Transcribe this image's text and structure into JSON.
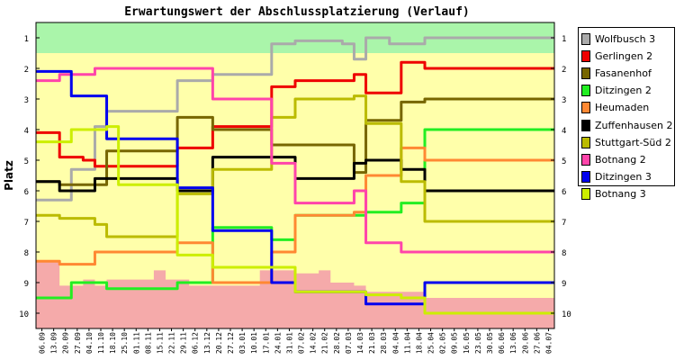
{
  "chart_data": {
    "type": "line",
    "title": "Erwartungswert der Abschlussplatzierung (Verlauf)",
    "ylabel": "Platz",
    "xlabel": "",
    "ylim": [
      1,
      10
    ],
    "y_inverted": true,
    "y_ticks": [
      "1",
      "2",
      "3",
      "4",
      "5",
      "6",
      "7",
      "8",
      "9",
      "10"
    ],
    "grid": false,
    "legend": "right",
    "x": [
      "06.09",
      "13.09",
      "20.09",
      "27.09",
      "04.10",
      "11.10",
      "18.10",
      "25.10",
      "01.11",
      "08.11",
      "15.11",
      "22.11",
      "29.11",
      "06.12",
      "13.12",
      "20.12",
      "27.12",
      "03.01",
      "10.01",
      "17.01",
      "24.01",
      "31.01",
      "07.02",
      "14.02",
      "21.02",
      "28.02",
      "07.03",
      "14.03",
      "21.03",
      "28.03",
      "04.04",
      "11.04",
      "18.04",
      "25.04",
      "02.05",
      "09.05",
      "16.05",
      "23.05",
      "30.05",
      "06.06",
      "13.06",
      "20.06",
      "27.06",
      "04.07"
    ],
    "x_tick_labels": [
      "06.09",
      "13.09",
      "20.09",
      "27.09",
      "04.10",
      "11.10",
      "18.10",
      "25.10",
      "01.11",
      "08.11",
      "15.11",
      "22.11",
      "29.11",
      "06.12",
      "13.12",
      "20.12",
      "27.12",
      "03.01",
      "10.01",
      "17.01",
      "24.01",
      "31.01",
      "07.02",
      "14.02",
      "21.02",
      "28.02",
      "07.03",
      "14.03",
      "21.03",
      "28.03",
      "04.04",
      "11.04",
      "18.04",
      "25.04",
      "02.05",
      "09.05",
      "16.05",
      "23.05",
      "30.05",
      "06.06",
      "13.06",
      "20.06",
      "27.06",
      "04.07"
    ],
    "bands": [
      {
        "from": 0.5,
        "to": 1.5,
        "color": "#aaf5aa"
      },
      {
        "from": 1.5,
        "to": 9.5,
        "color": "#ffffaa"
      },
      {
        "from": 9.5,
        "to": 10.5,
        "color": "#f5aaaa"
      }
    ],
    "relegation_area_color": "#f5aaaa",
    "relegation_area": [
      8.3,
      8.3,
      9.1,
      9.1,
      8.9,
      9.1,
      8.9,
      8.9,
      8.9,
      8.9,
      8.6,
      8.9,
      8.9,
      9.1,
      9.1,
      9.1,
      9.1,
      9.1,
      9.1,
      8.6,
      8.6,
      8.6,
      8.7,
      8.7,
      8.6,
      9.0,
      9.0,
      9.1,
      9.3,
      9.3,
      9.3,
      9.3,
      9.3,
      9.5,
      9.5,
      9.5,
      9.5,
      9.5,
      9.5,
      9.5,
      9.5,
      9.5,
      9.5,
      9.5
    ],
    "series": [
      {
        "name": "Wolfbusch 3",
        "color": "#aaaaaa",
        "values": [
          6.3,
          6.3,
          6.3,
          5.3,
          5.3,
          3.9,
          3.4,
          3.4,
          3.4,
          3.4,
          3.4,
          3.4,
          2.4,
          2.4,
          2.4,
          2.2,
          2.2,
          2.2,
          2.2,
          2.2,
          1.2,
          1.2,
          1.1,
          1.1,
          1.1,
          1.1,
          1.2,
          1.7,
          1.0,
          1.0,
          1.2,
          1.2,
          1.2,
          1.0,
          1.0,
          1.0,
          1.0,
          1.0,
          1.0,
          1.0,
          1.0,
          1.0,
          1.0,
          1.0
        ]
      },
      {
        "name": "Gerlingen 2",
        "color": "#ee0000",
        "values": [
          4.1,
          4.1,
          4.9,
          4.9,
          5.0,
          5.2,
          5.2,
          5.2,
          5.2,
          5.2,
          5.2,
          5.2,
          4.6,
          4.6,
          4.6,
          3.9,
          3.9,
          3.9,
          3.9,
          3.9,
          2.6,
          2.6,
          2.4,
          2.4,
          2.4,
          2.4,
          2.4,
          2.2,
          2.8,
          2.8,
          2.8,
          1.8,
          1.8,
          2.0,
          2.0,
          2.0,
          2.0,
          2.0,
          2.0,
          2.0,
          2.0,
          2.0,
          2.0,
          2.0
        ]
      },
      {
        "name": "Fasanenhof",
        "color": "#776600",
        "values": [
          5.7,
          5.7,
          5.8,
          5.8,
          5.8,
          5.8,
          4.7,
          4.7,
          4.7,
          4.7,
          4.7,
          4.7,
          3.6,
          3.6,
          3.6,
          4.0,
          4.0,
          4.0,
          4.0,
          4.0,
          4.5,
          4.5,
          4.5,
          4.5,
          4.5,
          4.5,
          4.5,
          5.4,
          3.7,
          3.7,
          3.7,
          3.1,
          3.1,
          3.0,
          3.0,
          3.0,
          3.0,
          3.0,
          3.0,
          3.0,
          3.0,
          3.0,
          3.0,
          3.0
        ]
      },
      {
        "name": "Ditzingen 2",
        "color": "#22ee22",
        "values": [
          9.5,
          9.5,
          9.5,
          9.0,
          9.0,
          9.0,
          9.2,
          9.2,
          9.2,
          9.2,
          9.2,
          9.2,
          9.0,
          9.0,
          9.0,
          7.2,
          7.2,
          7.2,
          7.2,
          7.2,
          7.6,
          7.6,
          6.8,
          6.8,
          6.8,
          6.8,
          6.8,
          6.8,
          6.7,
          6.7,
          6.7,
          6.4,
          6.4,
          4.0,
          4.0,
          4.0,
          4.0,
          4.0,
          4.0,
          4.0,
          4.0,
          4.0,
          4.0,
          4.0
        ]
      },
      {
        "name": "Heumaden",
        "color": "#ff8833",
        "values": [
          8.3,
          8.3,
          8.4,
          8.4,
          8.4,
          8.0,
          8.0,
          8.0,
          8.0,
          8.0,
          8.0,
          8.0,
          7.7,
          7.7,
          7.7,
          9.0,
          9.0,
          9.0,
          9.0,
          9.0,
          8.0,
          8.0,
          6.8,
          6.8,
          6.8,
          6.8,
          6.8,
          6.7,
          5.5,
          5.5,
          5.5,
          4.6,
          4.6,
          5.0,
          5.0,
          5.0,
          5.0,
          5.0,
          5.0,
          5.0,
          5.0,
          5.0,
          5.0,
          5.0
        ]
      },
      {
        "name": "Zuffenhausen 2",
        "color": "#000000",
        "values": [
          5.7,
          5.7,
          6.0,
          6.0,
          6.0,
          5.6,
          5.6,
          5.6,
          5.6,
          5.6,
          5.6,
          5.6,
          6.0,
          6.0,
          6.0,
          4.9,
          4.9,
          4.9,
          4.9,
          4.9,
          4.9,
          4.9,
          5.6,
          5.6,
          5.6,
          5.6,
          5.6,
          5.1,
          5.0,
          5.0,
          5.0,
          5.3,
          5.3,
          6.0,
          6.0,
          6.0,
          6.0,
          6.0,
          6.0,
          6.0,
          6.0,
          6.0,
          6.0,
          6.0
        ]
      },
      {
        "name": "Stuttgart-Süd 2",
        "color": "#bbbb00",
        "values": [
          6.8,
          6.8,
          6.9,
          6.9,
          6.9,
          7.1,
          7.5,
          7.5,
          7.5,
          7.5,
          7.5,
          7.5,
          6.1,
          6.1,
          6.1,
          5.3,
          5.3,
          5.3,
          5.3,
          5.3,
          3.6,
          3.6,
          3.0,
          3.0,
          3.0,
          3.0,
          3.0,
          2.9,
          3.8,
          3.8,
          3.8,
          5.7,
          5.7,
          7.0,
          7.0,
          7.0,
          7.0,
          7.0,
          7.0,
          7.0,
          7.0,
          7.0,
          7.0,
          7.0
        ]
      },
      {
        "name": "Botnang 2",
        "color": "#ff44aa",
        "values": [
          2.4,
          2.4,
          2.2,
          2.2,
          2.2,
          2.0,
          2.0,
          2.0,
          2.0,
          2.0,
          2.0,
          2.0,
          2.0,
          2.0,
          2.0,
          3.0,
          3.0,
          3.0,
          3.0,
          3.0,
          5.1,
          5.1,
          6.4,
          6.4,
          6.4,
          6.4,
          6.4,
          6.0,
          7.7,
          7.7,
          7.7,
          8.0,
          8.0,
          8.0,
          8.0,
          8.0,
          8.0,
          8.0,
          8.0,
          8.0,
          8.0,
          8.0,
          8.0,
          8.0
        ]
      },
      {
        "name": "Ditzingen 3",
        "color": "#0000ee",
        "values": [
          2.1,
          2.1,
          2.1,
          2.9,
          2.9,
          2.9,
          4.3,
          4.3,
          4.3,
          4.3,
          4.3,
          4.3,
          5.9,
          5.9,
          5.9,
          7.3,
          7.3,
          7.3,
          7.3,
          7.3,
          9.0,
          9.0,
          9.3,
          9.3,
          9.3,
          9.3,
          9.3,
          9.3,
          9.7,
          9.7,
          9.7,
          9.7,
          9.7,
          9.0,
          9.0,
          9.0,
          9.0,
          9.0,
          9.0,
          9.0,
          9.0,
          9.0,
          9.0,
          9.0
        ]
      },
      {
        "name": "Botnang 3",
        "color": "#ccee00",
        "values": [
          4.4,
          4.4,
          4.4,
          4.0,
          4.0,
          4.0,
          3.9,
          5.8,
          5.8,
          5.8,
          5.8,
          5.8,
          8.1,
          8.1,
          8.1,
          8.5,
          8.5,
          8.5,
          8.5,
          8.5,
          8.5,
          8.5,
          9.3,
          9.3,
          9.3,
          9.3,
          9.3,
          9.3,
          9.4,
          9.4,
          9.4,
          9.5,
          9.5,
          10.0,
          10.0,
          10.0,
          10.0,
          10.0,
          10.0,
          10.0,
          10.0,
          10.0,
          10.0,
          10.0
        ]
      }
    ]
  }
}
